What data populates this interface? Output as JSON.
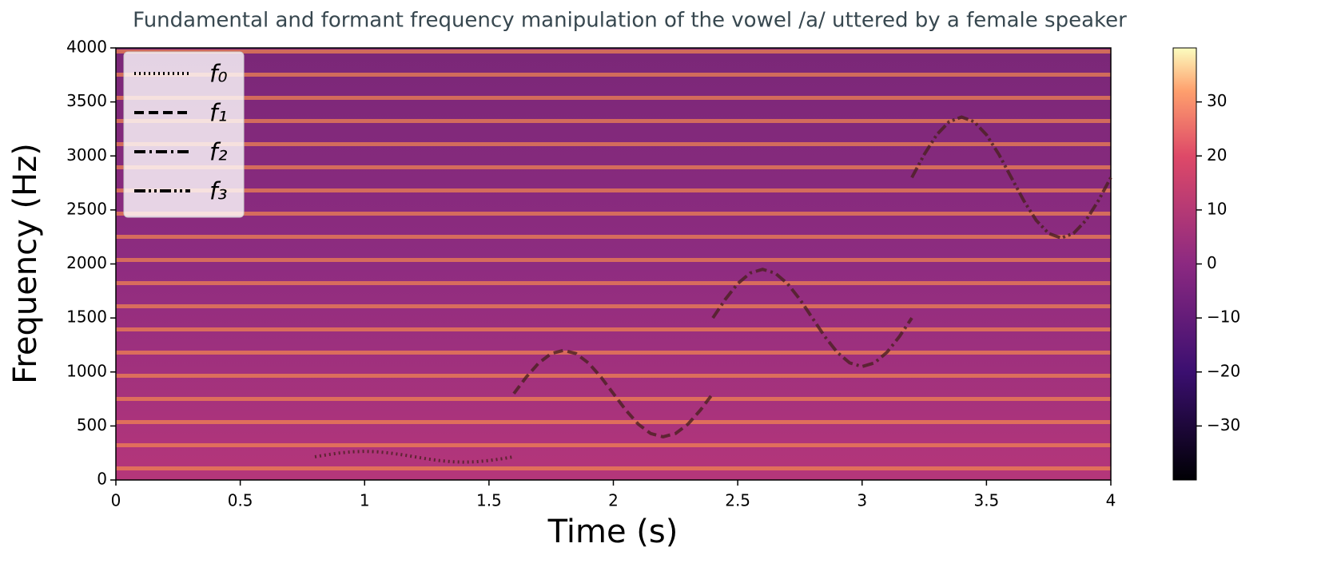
{
  "chart_data": {
    "type": "spectrogram",
    "title": "Fundamental and formant frequency manipulation of the vowel /a/ uttered by a female speaker",
    "xlabel": "Time (s)",
    "ylabel": "Frequency (Hz)",
    "xlim": [
      0,
      4
    ],
    "xticks": [
      0,
      0.5,
      1,
      1.5,
      2,
      2.5,
      3,
      3.5,
      4
    ],
    "ylim": [
      0,
      4000
    ],
    "yticks": [
      0,
      500,
      1000,
      1500,
      2000,
      2500,
      3000,
      3500,
      4000
    ],
    "legend": "upper left",
    "series": [
      {
        "name": "f₀",
        "color": "#4a2020",
        "linestyle": "dotted",
        "x": [
          0.8,
          0.85,
          0.9,
          0.95,
          1.0,
          1.05,
          1.1,
          1.15,
          1.2,
          1.25,
          1.3,
          1.35,
          1.4,
          1.45,
          1.5,
          1.55,
          1.6
        ],
        "values": [
          215,
          234,
          250,
          261,
          265,
          261,
          250,
          234,
          215,
          196,
          180,
          169,
          165,
          169,
          180,
          196,
          215
        ]
      },
      {
        "name": "f₁",
        "color": "#4a2020",
        "linestyle": "dashed",
        "x": [
          1.6,
          1.65,
          1.7,
          1.75,
          1.8,
          1.85,
          1.9,
          1.95,
          2.0,
          2.05,
          2.1,
          2.15,
          2.2,
          2.25,
          2.3,
          2.35,
          2.4
        ],
        "values": [
          800,
          953,
          1083,
          1170,
          1200,
          1170,
          1083,
          953,
          800,
          647,
          517,
          430,
          400,
          430,
          517,
          647,
          800
        ]
      },
      {
        "name": "f₂",
        "color": "#4a2020",
        "linestyle": "dashdot",
        "x": [
          2.4,
          2.45,
          2.5,
          2.55,
          2.6,
          2.65,
          2.7,
          2.75,
          2.8,
          2.85,
          2.9,
          2.95,
          3.0,
          3.05,
          3.1,
          3.15,
          3.2
        ],
        "values": [
          1500,
          1672,
          1818,
          1916,
          1950,
          1916,
          1818,
          1672,
          1500,
          1328,
          1182,
          1084,
          1050,
          1084,
          1182,
          1328,
          1500
        ]
      },
      {
        "name": "f₃",
        "color": "#4a2020",
        "linestyle": "dashdotdot",
        "x": [
          3.2,
          3.25,
          3.3,
          3.35,
          3.4,
          3.45,
          3.5,
          3.55,
          3.6,
          3.65,
          3.7,
          3.75,
          3.8,
          3.85,
          3.9,
          3.95,
          4.0
        ],
        "values": [
          2800,
          3014,
          3196,
          3317,
          3360,
          3317,
          3196,
          3014,
          2800,
          2586,
          2404,
          2283,
          2240,
          2283,
          2404,
          2586,
          2800
        ]
      }
    ],
    "colorbar": {
      "lim": [
        -40,
        40
      ],
      "ticks": [
        {
          "value": -30,
          "label": "−30"
        },
        {
          "value": -20,
          "label": "−20"
        },
        {
          "value": -10,
          "label": "−10"
        },
        0,
        10,
        20,
        30
      ]
    }
  }
}
